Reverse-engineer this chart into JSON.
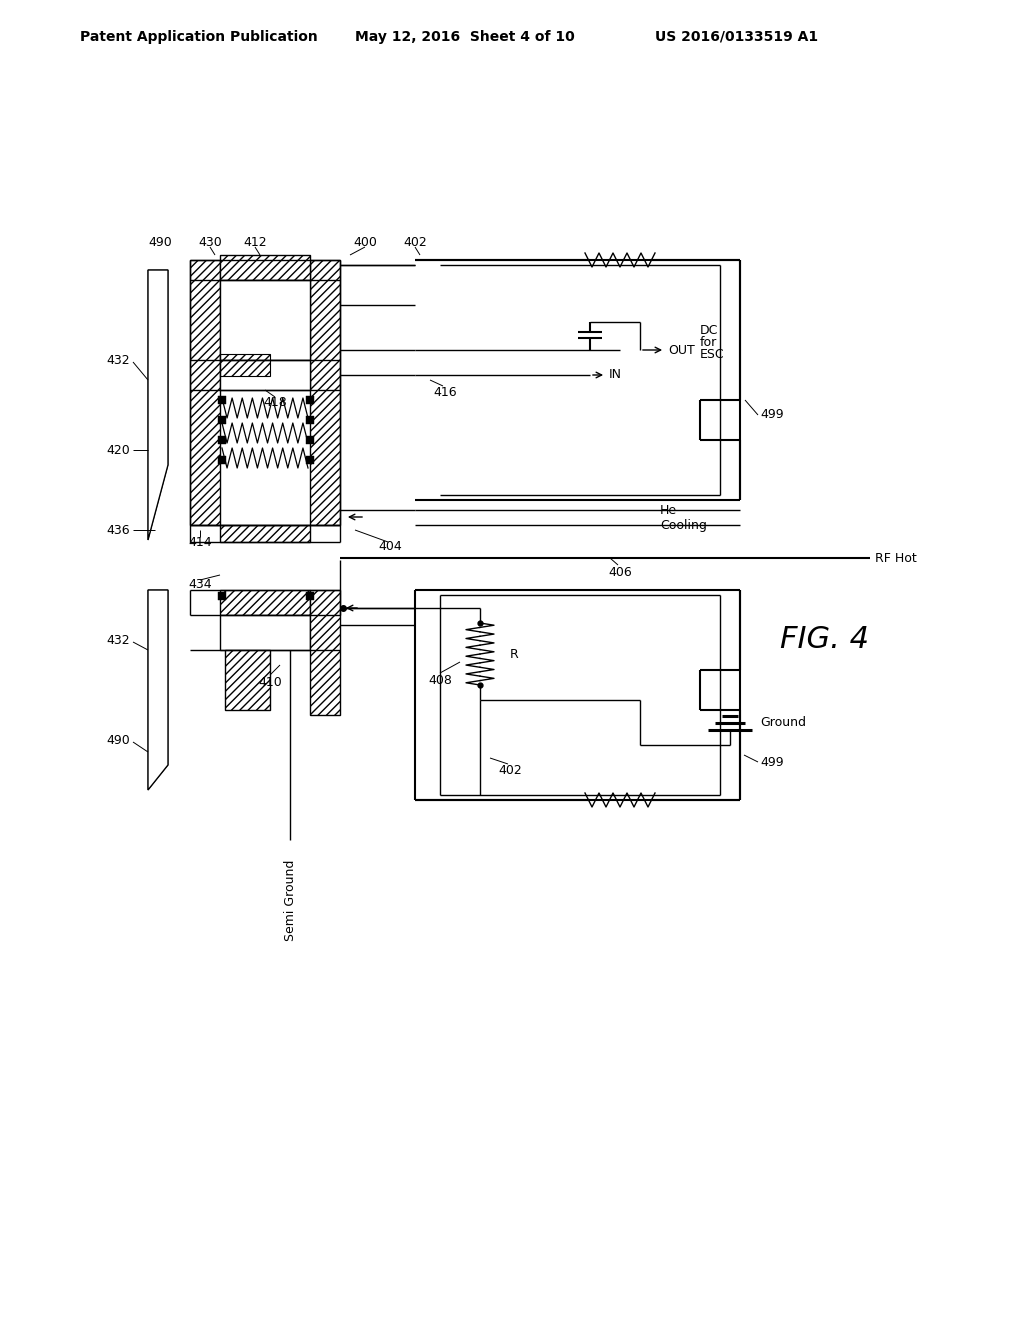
{
  "bg_color": "#ffffff",
  "header_left": "Patent Application Publication",
  "header_center": "May 12, 2016  Sheet 4 of 10",
  "header_right": "US 2016/0133519 A1",
  "fig_label": "FIG. 4"
}
